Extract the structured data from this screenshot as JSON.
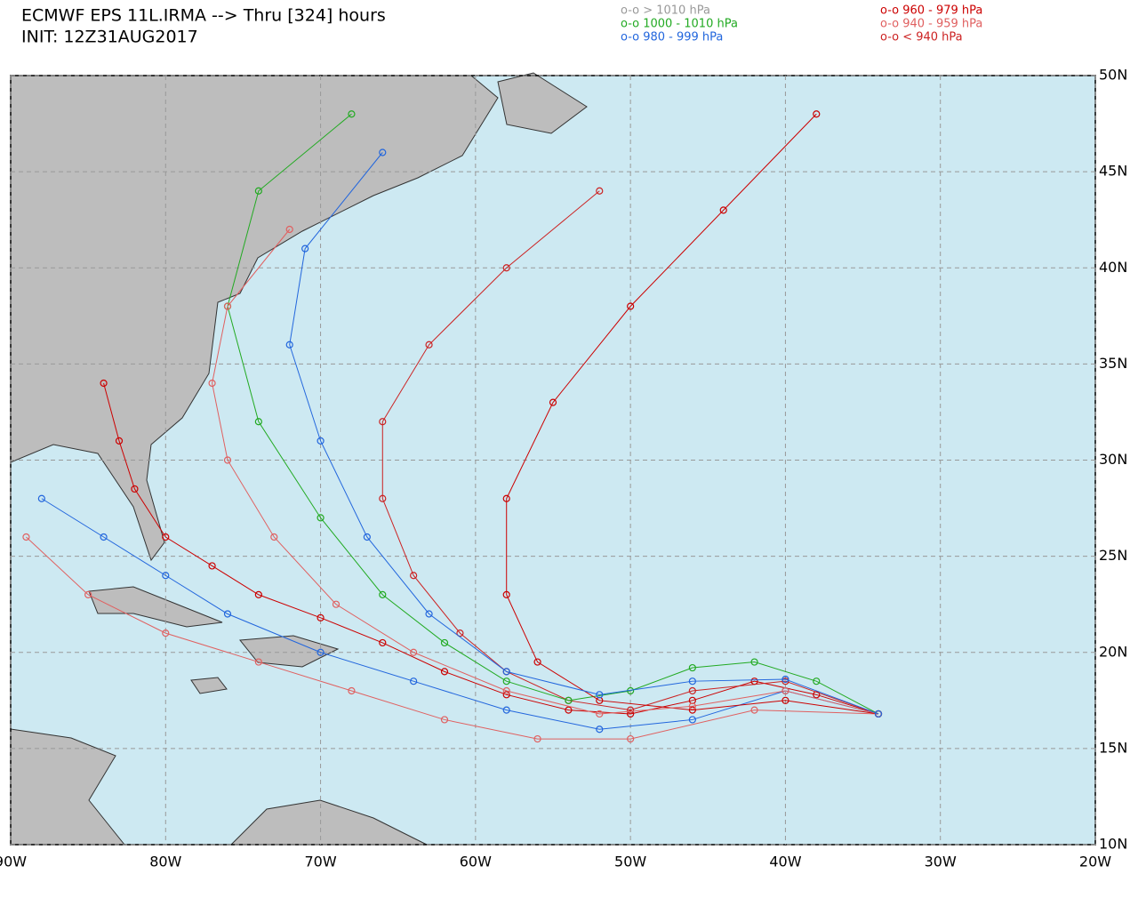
{
  "header": {
    "title": "ECMWF EPS 11L.IRMA --> Thru [324] hours",
    "init": "INIT: 12Z31AUG2017"
  },
  "legend": [
    {
      "label": "o-o > 1010 hPa",
      "color": "#999999"
    },
    {
      "label": "o-o 1000 - 1010 hPa",
      "color": "#22aa22"
    },
    {
      "label": "o-o 980 - 999 hPa",
      "color": "#2266dd"
    },
    {
      "label": "o-o 960 - 979 hPa",
      "color": "#cc0000"
    },
    {
      "label": "o-o 940 - 959 hPa",
      "color": "#e06060"
    },
    {
      "label": "o-o < 940 hPa",
      "color": "#cc2222"
    }
  ],
  "map": {
    "lonlim": [
      -90,
      -20
    ],
    "latlim": [
      10,
      50
    ],
    "lonticks": [
      {
        "value": -90,
        "label": "90W"
      },
      {
        "value": -80,
        "label": "80W"
      },
      {
        "value": -70,
        "label": "70W"
      },
      {
        "value": -60,
        "label": "60W"
      },
      {
        "value": -50,
        "label": "50W"
      },
      {
        "value": -40,
        "label": "40W"
      },
      {
        "value": -30,
        "label": "30W"
      },
      {
        "value": -20,
        "label": "20W"
      }
    ],
    "latticks": [
      {
        "value": 10,
        "label": "10N"
      },
      {
        "value": 15,
        "label": "15N"
      },
      {
        "value": 20,
        "label": "20N"
      },
      {
        "value": 25,
        "label": "25N"
      },
      {
        "value": 30,
        "label": "30N"
      },
      {
        "value": 35,
        "label": "35N"
      },
      {
        "value": 40,
        "label": "40N"
      },
      {
        "value": 45,
        "label": "45N"
      },
      {
        "value": 50,
        "label": "50N"
      }
    ],
    "tracks": [
      {
        "color": "#cc0000",
        "lon": [
          -34,
          -38,
          -42,
          -46,
          -50,
          -54,
          -58,
          -62,
          -66,
          -70,
          -74,
          -77,
          -80,
          -82,
          -83,
          -84
        ],
        "lat": [
          16.8,
          17.8,
          18.5,
          17.5,
          16.8,
          17,
          17.8,
          19,
          20.5,
          21.8,
          23,
          24.5,
          26,
          28.5,
          31,
          34
        ]
      },
      {
        "color": "#cc2222",
        "lon": [
          -34,
          -40,
          -46,
          -50,
          -54,
          -58,
          -61,
          -64,
          -66,
          -66,
          -63,
          -58,
          -52
        ],
        "lat": [
          16.8,
          18.5,
          18,
          17,
          17.5,
          19,
          21,
          24,
          28,
          32,
          36,
          40,
          44
        ]
      },
      {
        "color": "#2266dd",
        "lon": [
          -34,
          -40,
          -46,
          -52,
          -58,
          -64,
          -70,
          -76,
          -80,
          -84,
          -88
        ],
        "lat": [
          16.8,
          18,
          16.5,
          16,
          17,
          18.5,
          20,
          22,
          24,
          26,
          28
        ]
      },
      {
        "color": "#22aa22",
        "lon": [
          -34,
          -38,
          -42,
          -46,
          -50,
          -54,
          -58,
          -62,
          -66,
          -70,
          -74,
          -76,
          -74,
          -68
        ],
        "lat": [
          16.8,
          18.5,
          19.5,
          19.2,
          18,
          17.5,
          18.5,
          20.5,
          23,
          27,
          32,
          38,
          44,
          48
        ]
      },
      {
        "color": "#e06060",
        "lon": [
          -34,
          -42,
          -50,
          -56,
          -62,
          -68,
          -74,
          -80,
          -85,
          -89
        ],
        "lat": [
          16.8,
          17,
          15.5,
          15.5,
          16.5,
          18,
          19.5,
          21,
          23,
          26
        ]
      },
      {
        "color": "#cc0000",
        "lon": [
          -34,
          -40,
          -46,
          -52,
          -56,
          -58,
          -58,
          -55,
          -50,
          -44,
          -38
        ],
        "lat": [
          16.8,
          17.5,
          17,
          17.5,
          19.5,
          23,
          28,
          33,
          38,
          43,
          48
        ]
      },
      {
        "color": "#e06060",
        "lon": [
          -34,
          -40,
          -46,
          -52,
          -58,
          -64,
          -69,
          -73,
          -76,
          -77,
          -76,
          -72
        ],
        "lat": [
          16.8,
          18,
          17.2,
          16.8,
          18,
          20,
          22.5,
          26,
          30,
          34,
          38,
          42
        ]
      },
      {
        "color": "#2266dd",
        "lon": [
          -34,
          -40,
          -46,
          -52,
          -58,
          -63,
          -67,
          -70,
          -72,
          -71,
          -66
        ],
        "lat": [
          16.8,
          18.6,
          18.5,
          17.8,
          19,
          22,
          26,
          31,
          36,
          41,
          46
        ]
      }
    ]
  }
}
